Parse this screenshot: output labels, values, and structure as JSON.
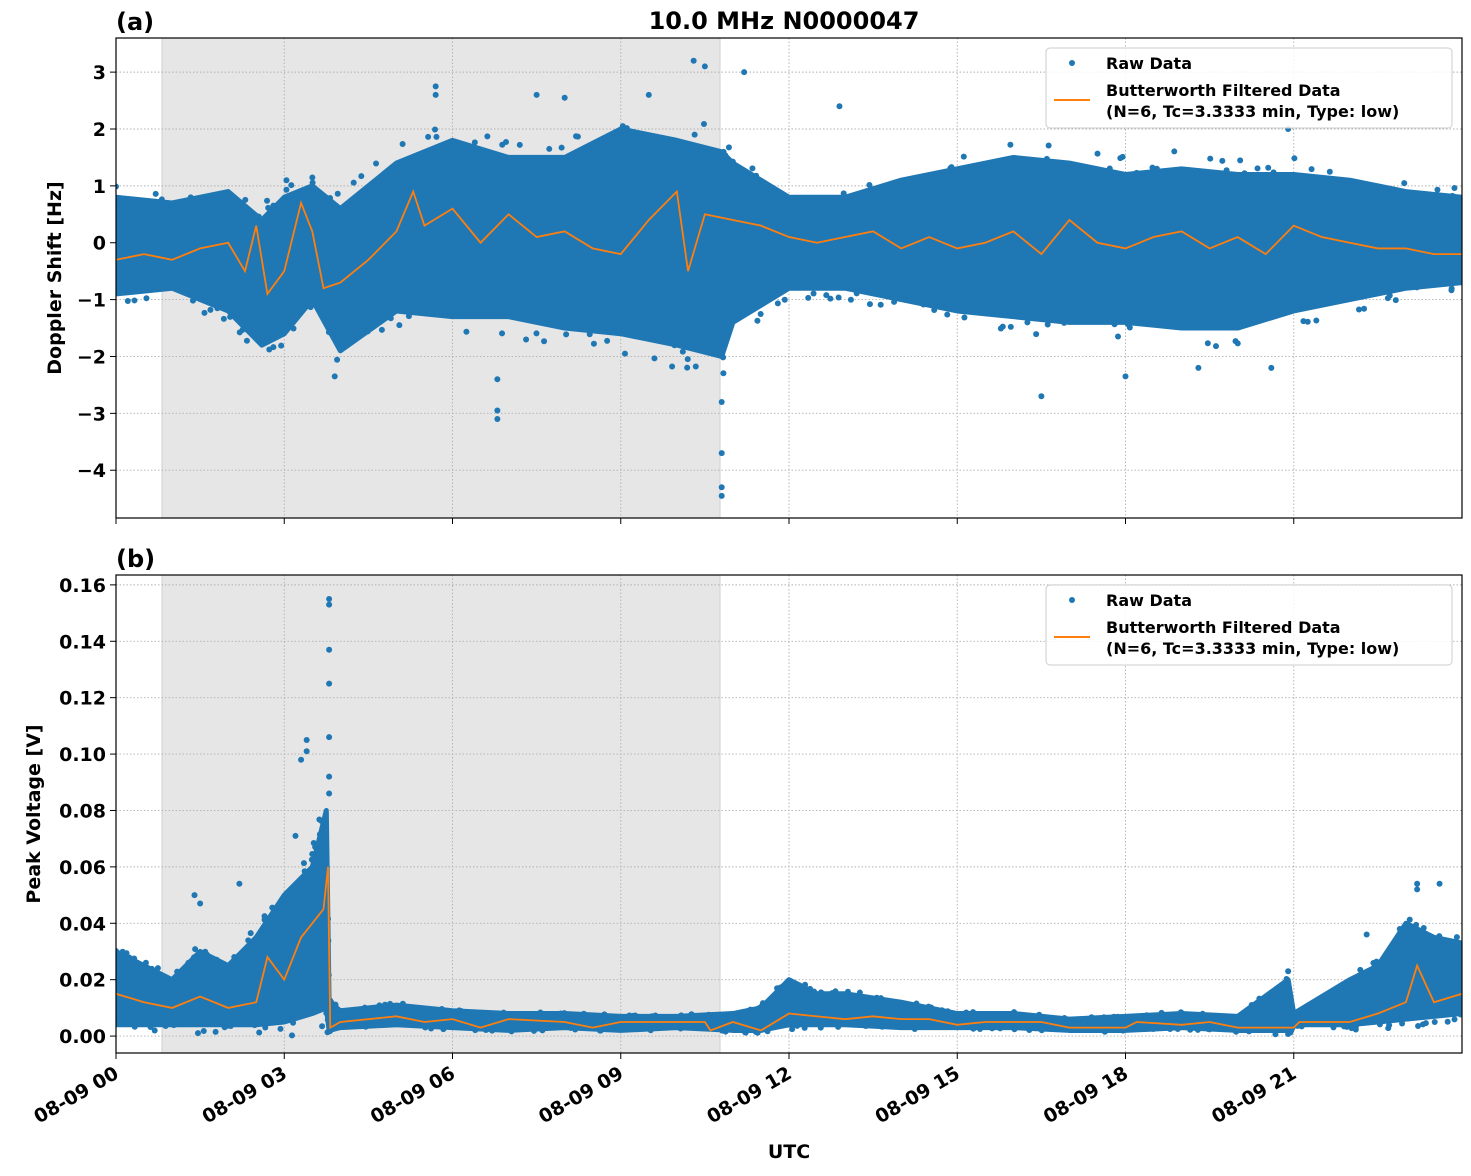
{
  "chart_data": [
    {
      "type": "scatter+line",
      "panel_label": "(a)",
      "title": "10.0 MHz N0000047",
      "xlabel": "",
      "ylabel": "Doppler Shift [Hz]",
      "xlim_hours": [
        0,
        24
      ],
      "ylim": [
        -4.84,
        3.6
      ],
      "yticks": [
        3,
        2,
        1,
        0,
        -1,
        -2,
        -3,
        -4
      ],
      "ytick_labels": [
        "3",
        "2",
        "1",
        "0",
        "−1",
        "−2",
        "−3",
        "−4"
      ],
      "grid": true,
      "legend": "top-right",
      "legend_entries": [
        "Raw Data",
        "Butterworth Filtered Data",
        "(N=6, Tc=3.3333 min, Type: low)"
      ],
      "shaded_span_hours": [
        0.82,
        10.77
      ],
      "colors": {
        "raw": "#1f77b4",
        "filtered": "#ff7f0e",
        "shade": "#e6e6e6"
      },
      "raw_band": {
        "x": [
          0,
          1,
          2,
          2.6,
          3,
          3.5,
          4,
          5,
          6,
          7,
          8,
          9,
          10,
          10.8,
          11,
          12,
          13,
          14,
          15,
          16,
          17,
          18,
          19,
          20,
          21,
          22,
          23,
          24
        ],
        "lower": [
          -0.9,
          -0.8,
          -1.2,
          -1.8,
          -1.6,
          -1.0,
          -1.9,
          -1.2,
          -1.3,
          -1.3,
          -1.5,
          -1.6,
          -1.8,
          -2.0,
          -1.4,
          -0.8,
          -0.8,
          -1.0,
          -1.2,
          -1.3,
          -1.4,
          -1.4,
          -1.5,
          -1.5,
          -1.2,
          -1.0,
          -0.8,
          -0.7
        ],
        "upper": [
          0.8,
          0.7,
          0.9,
          0.4,
          0.8,
          1.0,
          0.6,
          1.4,
          1.8,
          1.5,
          1.5,
          2.0,
          1.8,
          1.6,
          1.4,
          0.8,
          0.8,
          1.1,
          1.3,
          1.5,
          1.4,
          1.2,
          1.3,
          1.2,
          1.2,
          1.1,
          0.9,
          0.8
        ]
      },
      "raw_outliers": [
        [
          6.8,
          -3.1
        ],
        [
          6.8,
          -2.95
        ],
        [
          6.8,
          -2.4
        ],
        [
          5.7,
          2.75
        ],
        [
          5.7,
          2.6
        ],
        [
          9.5,
          2.6
        ],
        [
          10.3,
          3.2
        ],
        [
          10.5,
          3.1
        ],
        [
          11.2,
          3.0
        ],
        [
          10.8,
          -4.45
        ],
        [
          10.8,
          -4.3
        ],
        [
          10.8,
          -3.7
        ],
        [
          10.8,
          -2.8
        ],
        [
          12.9,
          2.4
        ],
        [
          16.5,
          -2.7
        ],
        [
          18.0,
          -2.35
        ],
        [
          20.9,
          2.0
        ],
        [
          3.9,
          -2.35
        ],
        [
          7.5,
          2.6
        ],
        [
          8.0,
          2.55
        ],
        [
          19.3,
          -2.2
        ],
        [
          20.6,
          -2.2
        ]
      ],
      "filtered": {
        "x": [
          0,
          0.5,
          1,
          1.5,
          2,
          2.3,
          2.5,
          2.7,
          3,
          3.3,
          3.5,
          3.7,
          4,
          4.5,
          5,
          5.3,
          5.5,
          6,
          6.5,
          7,
          7.5,
          8,
          8.5,
          9,
          9.5,
          10,
          10.2,
          10.5,
          11,
          11.5,
          12,
          12.5,
          13,
          13.5,
          14,
          14.5,
          15,
          15.5,
          16,
          16.5,
          17,
          17.5,
          18,
          18.5,
          19,
          19.5,
          20,
          20.5,
          21,
          21.5,
          22,
          22.5,
          23,
          23.5,
          24
        ],
        "y": [
          -0.3,
          -0.2,
          -0.3,
          -0.1,
          0,
          -0.5,
          0.3,
          -0.9,
          -0.5,
          0.7,
          0.2,
          -0.8,
          -0.7,
          -0.3,
          0.2,
          0.9,
          0.3,
          0.6,
          0,
          0.5,
          0.1,
          0.2,
          -0.1,
          -0.2,
          0.4,
          0.9,
          -0.5,
          0.5,
          0.4,
          0.3,
          0.1,
          0,
          0.1,
          0.2,
          -0.1,
          0.1,
          -0.1,
          0,
          0.2,
          -0.2,
          0.4,
          0,
          -0.1,
          0.1,
          0.2,
          -0.1,
          0.1,
          -0.2,
          0.3,
          0.1,
          0,
          -0.1,
          -0.1,
          -0.2,
          -0.2
        ]
      }
    },
    {
      "type": "scatter+line",
      "panel_label": "(b)",
      "xlabel": "UTC",
      "ylabel": "Peak Voltage [V]",
      "xlim_hours": [
        0,
        24
      ],
      "ylim": [
        -0.006,
        0.1635
      ],
      "yticks": [
        0.16,
        0.14,
        0.12,
        0.1,
        0.08,
        0.06,
        0.04,
        0.02,
        0.0
      ],
      "ytick_labels": [
        "0.16",
        "0.14",
        "0.12",
        "0.10",
        "0.08",
        "0.06",
        "0.04",
        "0.02",
        "0.00"
      ],
      "xticks_hours": [
        0,
        3,
        6,
        9,
        12,
        15,
        18,
        21
      ],
      "xtick_labels": [
        "08-09 00",
        "08-09 03",
        "08-09 06",
        "08-09 09",
        "08-09 12",
        "08-09 15",
        "08-09 18",
        "08-09 21"
      ],
      "grid": true,
      "legend": "top-right",
      "legend_entries": [
        "Raw Data",
        "Butterworth Filtered Data",
        "(N=6, Tc=3.3333 min, Type: low)"
      ],
      "shaded_span_hours": [
        0.82,
        10.77
      ],
      "colors": {
        "raw": "#1f77b4",
        "filtered": "#ff7f0e",
        "shade": "#e6e6e6"
      },
      "raw_band": {
        "x": [
          0,
          0.5,
          1,
          1.5,
          2,
          2.5,
          3,
          3.5,
          3.75,
          3.8,
          4,
          5,
          6,
          7,
          8,
          9,
          10,
          11,
          11.5,
          12,
          12.5,
          13,
          14,
          15,
          16,
          17,
          18,
          19,
          20,
          20.9,
          21,
          22,
          22.5,
          23,
          23.5,
          24
        ],
        "lower": [
          0.004,
          0.004,
          0.004,
          0.004,
          0.004,
          0.004,
          0.005,
          0.008,
          0.01,
          0.002,
          0.003,
          0.004,
          0.003,
          0.002,
          0.003,
          0.002,
          0.003,
          0.002,
          0.002,
          0.004,
          0.004,
          0.004,
          0.003,
          0.003,
          0.003,
          0.002,
          0.002,
          0.003,
          0.002,
          0.002,
          0.004,
          0.004,
          0.005,
          0.006,
          0.007,
          0.008
        ],
        "upper": [
          0.03,
          0.025,
          0.02,
          0.03,
          0.025,
          0.035,
          0.05,
          0.06,
          0.08,
          0.012,
          0.009,
          0.011,
          0.009,
          0.008,
          0.008,
          0.007,
          0.007,
          0.008,
          0.01,
          0.02,
          0.015,
          0.015,
          0.012,
          0.008,
          0.008,
          0.006,
          0.007,
          0.008,
          0.007,
          0.02,
          0.008,
          0.02,
          0.025,
          0.04,
          0.035,
          0.033
        ]
      },
      "raw_outliers": [
        [
          3.8,
          0.155
        ],
        [
          3.8,
          0.153
        ],
        [
          3.8,
          0.137
        ],
        [
          3.8,
          0.125
        ],
        [
          3.8,
          0.106
        ],
        [
          3.8,
          0.092
        ],
        [
          3.8,
          0.086
        ],
        [
          3.4,
          0.105
        ],
        [
          3.4,
          0.101
        ],
        [
          3.3,
          0.098
        ],
        [
          3.2,
          0.071
        ],
        [
          1.4,
          0.05
        ],
        [
          1.5,
          0.047
        ],
        [
          2.2,
          0.054
        ],
        [
          23.6,
          0.054
        ],
        [
          23.2,
          0.054
        ],
        [
          23.2,
          0.052
        ],
        [
          20.9,
          0.023
        ],
        [
          22.3,
          0.036
        ]
      ],
      "filtered": {
        "x": [
          0,
          0.5,
          1,
          1.5,
          2,
          2.5,
          2.7,
          3,
          3.3,
          3.5,
          3.7,
          3.78,
          3.82,
          4,
          5,
          5.5,
          6,
          6.5,
          7,
          8,
          8.5,
          9,
          10.5,
          10.6,
          11,
          11.5,
          12,
          12.5,
          13,
          13.5,
          14,
          14.5,
          15,
          15.5,
          16,
          16.5,
          17,
          18,
          18.2,
          19,
          19.5,
          20,
          21,
          21.1,
          22,
          22.5,
          23,
          23.2,
          23.5,
          24
        ],
        "y": [
          0.015,
          0.012,
          0.01,
          0.014,
          0.01,
          0.012,
          0.028,
          0.02,
          0.035,
          0.04,
          0.045,
          0.06,
          0.003,
          0.005,
          0.007,
          0.005,
          0.006,
          0.003,
          0.006,
          0.005,
          0.003,
          0.005,
          0.005,
          0.002,
          0.005,
          0.002,
          0.008,
          0.007,
          0.006,
          0.007,
          0.006,
          0.006,
          0.004,
          0.005,
          0.005,
          0.005,
          0.003,
          0.003,
          0.005,
          0.004,
          0.005,
          0.003,
          0.003,
          0.005,
          0.005,
          0.008,
          0.012,
          0.025,
          0.012,
          0.015
        ]
      }
    }
  ]
}
